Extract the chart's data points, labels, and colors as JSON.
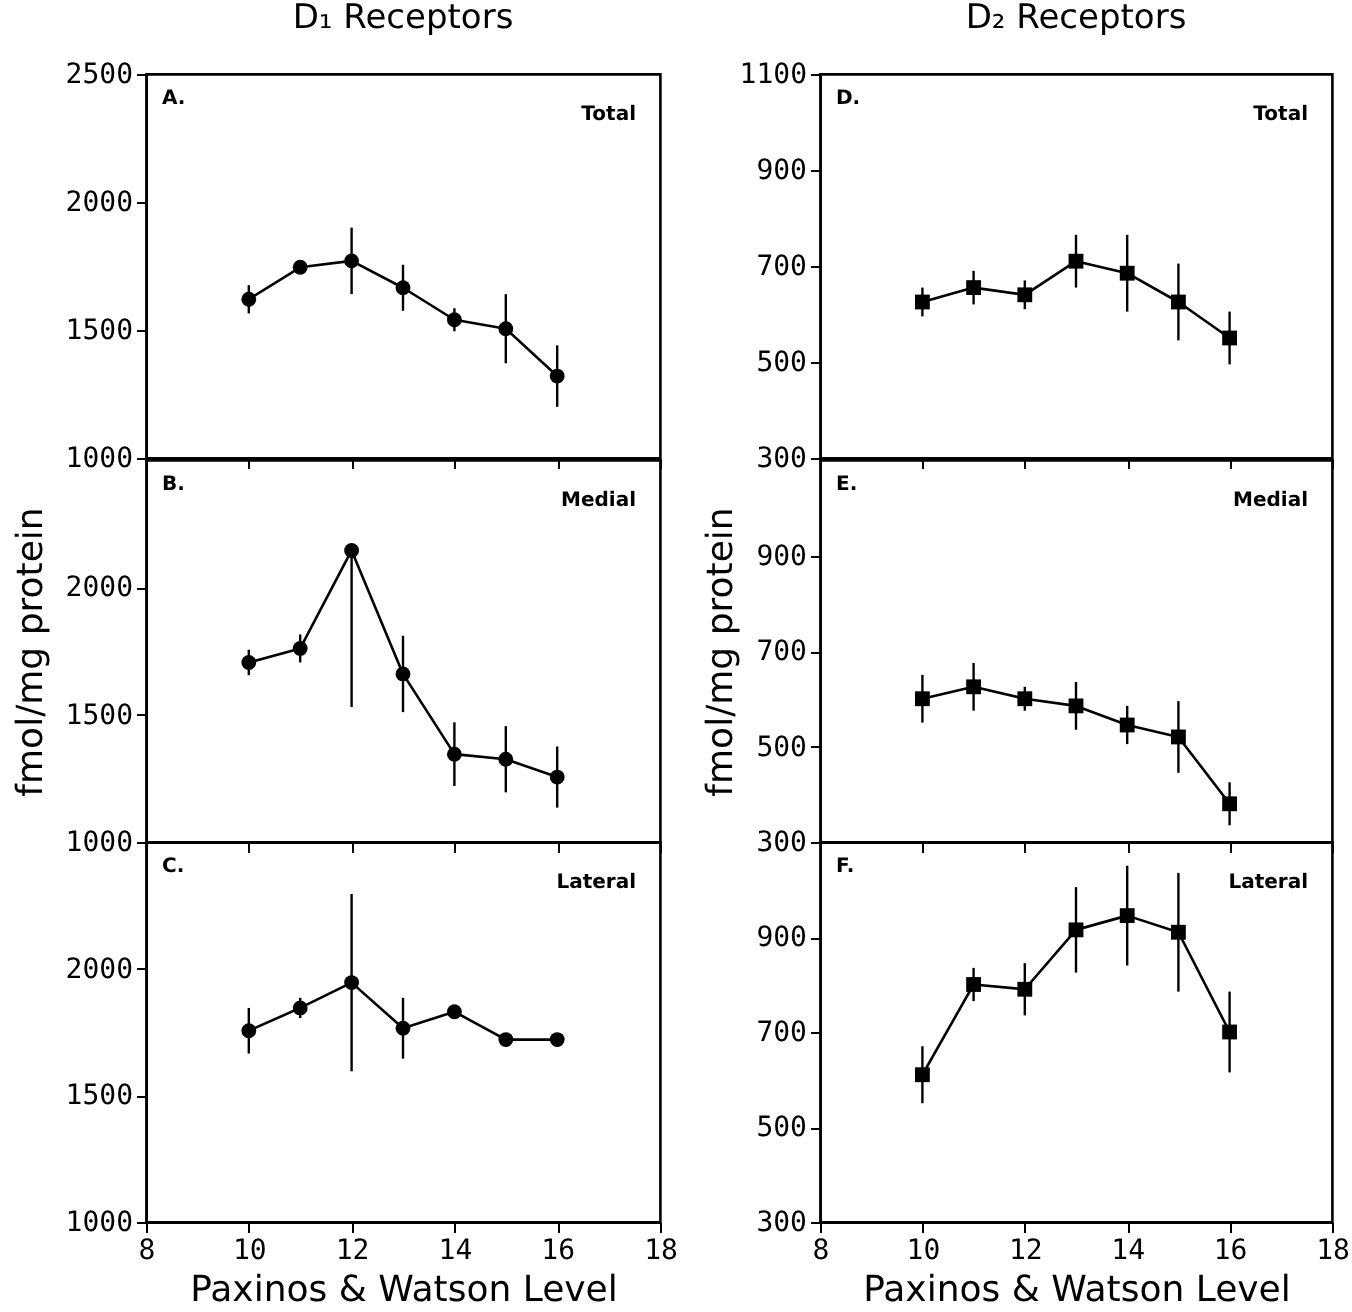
{
  "chart_data": [
    {
      "type": "line",
      "title": "D₁ Receptors",
      "annotations": [
        "A.",
        "Total"
      ],
      "x": [
        10,
        11,
        12,
        13,
        14,
        15,
        16
      ],
      "values": [
        1620,
        1745,
        1770,
        1665,
        1540,
        1505,
        1320
      ],
      "errors": [
        55,
        25,
        130,
        90,
        45,
        135,
        120
      ],
      "color": "#000000",
      "marker": "circle",
      "xlim": [
        8,
        18
      ],
      "xticks": [
        8,
        10,
        12,
        14,
        16,
        18
      ],
      "ylim": [
        1000,
        2500
      ],
      "yticks": [
        1000,
        1500,
        2000,
        2500
      ],
      "tick_labels": "y"
    },
    {
      "type": "line",
      "ylabel": "fmol/mg protein",
      "annotations": [
        "B.",
        "Medial"
      ],
      "x": [
        10,
        11,
        12,
        13,
        14,
        15,
        16
      ],
      "values": [
        1705,
        1760,
        2145,
        1660,
        1345,
        1325,
        1255
      ],
      "errors": [
        50,
        55,
        [
          1530,
          2145
        ],
        150,
        125,
        130,
        120
      ],
      "color": "#000000",
      "marker": "circle",
      "xlim": [
        8,
        18
      ],
      "xticks": [
        8,
        10,
        12,
        14,
        16,
        18
      ],
      "ylim": [
        1000,
        2500
      ],
      "yticks": [
        1000,
        1500,
        2000
      ],
      "tick_labels": "y"
    },
    {
      "type": "line",
      "xlabel": "Paxinos & Watson Level",
      "annotations": [
        "C.",
        "Lateral"
      ],
      "x": [
        10,
        11,
        12,
        13,
        14,
        15,
        16
      ],
      "values": [
        1755,
        1845,
        1945,
        1765,
        1830,
        1720,
        1720
      ],
      "errors": [
        90,
        40,
        350,
        120,
        25,
        25,
        20
      ],
      "color": "#000000",
      "marker": "circle",
      "xlim": [
        8,
        18
      ],
      "xticks": [
        8,
        10,
        12,
        14,
        16,
        18
      ],
      "ylim": [
        1000,
        2500
      ],
      "yticks": [
        1000,
        1500,
        2000
      ]
    },
    {
      "type": "line",
      "title": "D₂ Receptors",
      "annotations": [
        "D.",
        "Total"
      ],
      "x": [
        10,
        11,
        12,
        13,
        14,
        15,
        16
      ],
      "values": [
        625,
        655,
        640,
        710,
        685,
        625,
        550
      ],
      "errors": [
        30,
        35,
        30,
        55,
        80,
        80,
        55
      ],
      "color": "#000000",
      "marker": "square",
      "xlim": [
        8,
        18
      ],
      "xticks": [
        8,
        10,
        12,
        14,
        16,
        18
      ],
      "ylim": [
        300,
        1100
      ],
      "yticks": [
        300,
        500,
        700,
        900,
        1100
      ],
      "tick_labels": "y"
    },
    {
      "type": "line",
      "ylabel": "fmol/mg protein",
      "annotations": [
        "E.",
        "Medial"
      ],
      "x": [
        10,
        11,
        12,
        13,
        14,
        15,
        16
      ],
      "values": [
        600,
        625,
        600,
        585,
        545,
        520,
        380
      ],
      "errors": [
        50,
        50,
        25,
        50,
        40,
        75,
        45
      ],
      "color": "#000000",
      "marker": "square",
      "xlim": [
        8,
        18
      ],
      "xticks": [
        8,
        10,
        12,
        14,
        16,
        18
      ],
      "ylim": [
        300,
        1100
      ],
      "yticks": [
        300,
        500,
        700,
        900
      ],
      "tick_labels": "y"
    },
    {
      "type": "line",
      "xlabel": "Paxinos & Watson Level",
      "annotations": [
        "F.",
        "Lateral"
      ],
      "x": [
        10,
        11,
        12,
        13,
        14,
        15,
        16
      ],
      "values": [
        610,
        800,
        790,
        915,
        945,
        910,
        700
      ],
      "errors": [
        60,
        35,
        55,
        90,
        105,
        125,
        85
      ],
      "color": "#000000",
      "marker": "square",
      "xlim": [
        8,
        18
      ],
      "xticks": [
        8,
        10,
        12,
        14,
        16,
        18
      ],
      "ylim": [
        300,
        1100
      ],
      "yticks": [
        300,
        500,
        700,
        900
      ]
    }
  ]
}
